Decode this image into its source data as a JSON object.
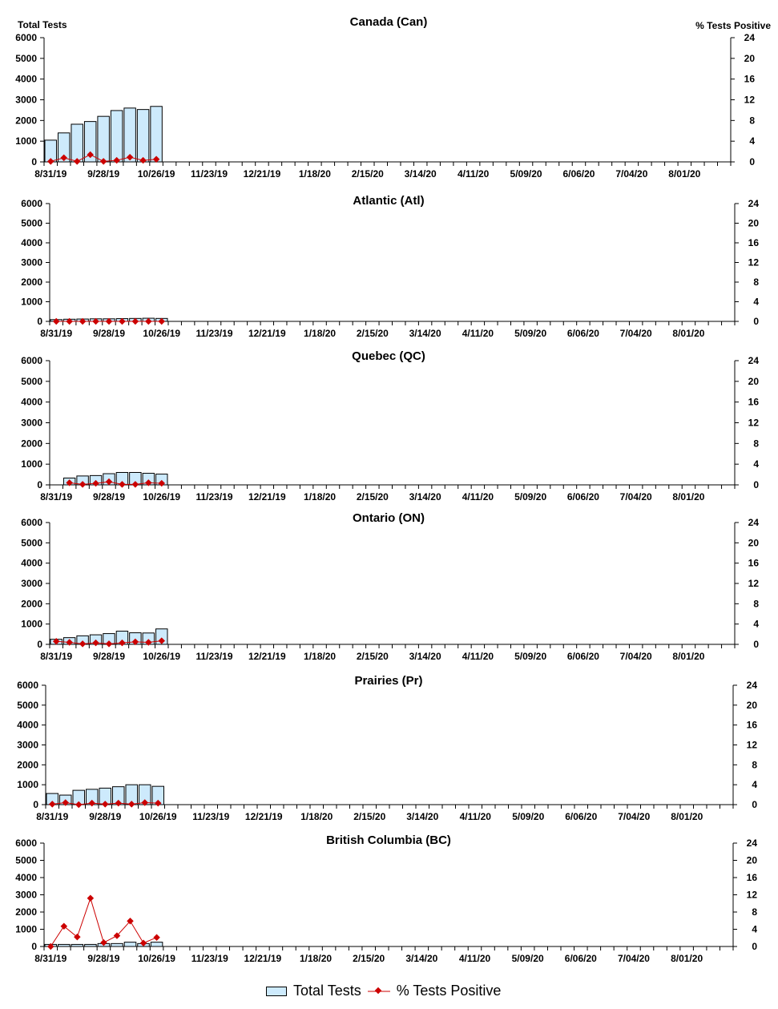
{
  "labels": {
    "left_axis": "Total Tests",
    "right_axis": "% Tests Positive"
  },
  "legend": {
    "bars": "Total Tests",
    "line": "% Tests Positive"
  },
  "colors": {
    "bar_fill": "#cdeafc",
    "line": "#cc0000"
  },
  "chart_data": [
    {
      "type": "bar+line",
      "title": "Canada (Can)",
      "ylim": [
        0,
        6000
      ],
      "y2lim": [
        0,
        24
      ],
      "yticks": [
        "0",
        "1000",
        "2000",
        "3000",
        "4000",
        "5000",
        "6000"
      ],
      "y2ticks": [
        "0",
        "4",
        "8",
        "12",
        "16",
        "20",
        "24"
      ],
      "xticks": [
        "8/31/19",
        "9/28/19",
        "10/26/19",
        "11/23/19",
        "12/21/19",
        "1/18/20",
        "2/15/20",
        "3/14/20",
        "4/11/20",
        "5/09/20",
        "6/06/20",
        "7/04/20",
        "8/01/20"
      ],
      "weeks": 52,
      "series": [
        {
          "name": "Total Tests",
          "type": "bar",
          "values": [
            1050,
            1400,
            1820,
            1950,
            2200,
            2480,
            2600,
            2530,
            2680
          ]
        },
        {
          "name": "% Tests Positive",
          "type": "line",
          "values": [
            0.1,
            0.8,
            0.1,
            1.4,
            0.1,
            0.3,
            0.9,
            0.3,
            0.5
          ]
        }
      ]
    },
    {
      "type": "bar+line",
      "title": "Atlantic (Atl)",
      "ylim": [
        0,
        6000
      ],
      "y2lim": [
        0,
        24
      ],
      "yticks": [
        "0",
        "1000",
        "2000",
        "3000",
        "4000",
        "5000",
        "6000"
      ],
      "y2ticks": [
        "0",
        "4",
        "8",
        "12",
        "16",
        "20",
        "24"
      ],
      "xticks": [
        "8/31/19",
        "9/28/19",
        "10/26/19",
        "11/23/19",
        "12/21/19",
        "1/18/20",
        "2/15/20",
        "3/14/20",
        "4/11/20",
        "5/09/20",
        "6/06/20",
        "7/04/20",
        "8/01/20"
      ],
      "weeks": 52,
      "series": [
        {
          "name": "Total Tests",
          "type": "bar",
          "values": [
            90,
            110,
            120,
            130,
            130,
            140,
            150,
            160,
            150
          ]
        },
        {
          "name": "% Tests Positive",
          "type": "line",
          "values": [
            0,
            0,
            0,
            0,
            0,
            0,
            0,
            0,
            0
          ]
        }
      ]
    },
    {
      "type": "bar+line",
      "title": "Quebec (QC)",
      "ylim": [
        0,
        6000
      ],
      "y2lim": [
        0,
        24
      ],
      "yticks": [
        "0",
        "1000",
        "2000",
        "3000",
        "4000",
        "5000",
        "6000"
      ],
      "y2ticks": [
        "0",
        "4",
        "8",
        "12",
        "16",
        "20",
        "24"
      ],
      "xticks": [
        "8/31/19",
        "9/28/19",
        "10/26/19",
        "11/23/19",
        "12/21/19",
        "1/18/20",
        "2/15/20",
        "3/14/20",
        "4/11/20",
        "5/09/20",
        "6/06/20",
        "7/04/20",
        "8/01/20"
      ],
      "weeks": 52,
      "series": [
        {
          "name": "Total Tests",
          "type": "bar",
          "values": [
            0,
            330,
            430,
            450,
            540,
            600,
            600,
            560,
            520
          ]
        },
        {
          "name": "% Tests Positive",
          "type": "line",
          "values": [
            null,
            0.4,
            0.1,
            0.3,
            0.6,
            0.1,
            0.1,
            0.4,
            0.3
          ]
        }
      ]
    },
    {
      "type": "bar+line",
      "title": "Ontario (ON)",
      "ylim": [
        0,
        6000
      ],
      "y2lim": [
        0,
        24
      ],
      "yticks": [
        "0",
        "1000",
        "2000",
        "3000",
        "4000",
        "5000",
        "6000"
      ],
      "y2ticks": [
        "0",
        "4",
        "8",
        "12",
        "16",
        "20",
        "24"
      ],
      "xticks": [
        "8/31/19",
        "9/28/19",
        "10/26/19",
        "11/23/19",
        "12/21/19",
        "1/18/20",
        "2/15/20",
        "3/14/20",
        "4/11/20",
        "5/09/20",
        "6/06/20",
        "7/04/20",
        "8/01/20"
      ],
      "weeks": 52,
      "series": [
        {
          "name": "Total Tests",
          "type": "bar",
          "values": [
            250,
            330,
            420,
            470,
            530,
            650,
            570,
            560,
            760
          ]
        },
        {
          "name": "% Tests Positive",
          "type": "line",
          "values": [
            0.6,
            0.4,
            0.1,
            0.3,
            0.1,
            0.3,
            0.5,
            0.4,
            0.7
          ]
        }
      ]
    },
    {
      "type": "bar+line",
      "title": "Prairies (Pr)",
      "ylim": [
        0,
        6000
      ],
      "y2lim": [
        0,
        24
      ],
      "yticks": [
        "0",
        "1000",
        "2000",
        "3000",
        "4000",
        "5000",
        "6000"
      ],
      "y2ticks": [
        "0",
        "4",
        "8",
        "12",
        "16",
        "20",
        "24"
      ],
      "xticks": [
        "8/31/19",
        "9/28/19",
        "10/26/19",
        "11/23/19",
        "12/21/19",
        "1/18/20",
        "2/15/20",
        "3/14/20",
        "4/11/20",
        "5/09/20",
        "6/06/20",
        "7/04/20",
        "8/01/20"
      ],
      "weeks": 52,
      "series": [
        {
          "name": "Total Tests",
          "type": "bar",
          "values": [
            560,
            480,
            720,
            770,
            830,
            900,
            1000,
            1000,
            920
          ]
        },
        {
          "name": "% Tests Positive",
          "type": "line",
          "values": [
            0.1,
            0.4,
            0,
            0.3,
            0.1,
            0.3,
            0.1,
            0.4,
            0.3
          ]
        }
      ]
    },
    {
      "type": "bar+line",
      "title": "British Columbia (BC)",
      "ylim": [
        0,
        6000
      ],
      "y2lim": [
        0,
        24
      ],
      "yticks": [
        "0",
        "1000",
        "2000",
        "3000",
        "4000",
        "5000",
        "6000"
      ],
      "y2ticks": [
        "0",
        "4",
        "8",
        "12",
        "16",
        "20",
        "24"
      ],
      "xticks": [
        "8/31/19",
        "9/28/19",
        "10/26/19",
        "11/23/19",
        "12/21/19",
        "1/18/20",
        "2/15/20",
        "3/14/20",
        "4/11/20",
        "5/09/20",
        "6/06/20",
        "7/04/20",
        "8/01/20"
      ],
      "weeks": 52,
      "series": [
        {
          "name": "Total Tests",
          "type": "bar",
          "values": [
            120,
            120,
            120,
            120,
            170,
            170,
            250,
            170,
            250
          ]
        },
        {
          "name": "% Tests Positive",
          "type": "line",
          "values": [
            0,
            4.7,
            2.2,
            11.2,
            0.9,
            2.5,
            5.9,
            0.8,
            2.1
          ]
        }
      ]
    }
  ]
}
